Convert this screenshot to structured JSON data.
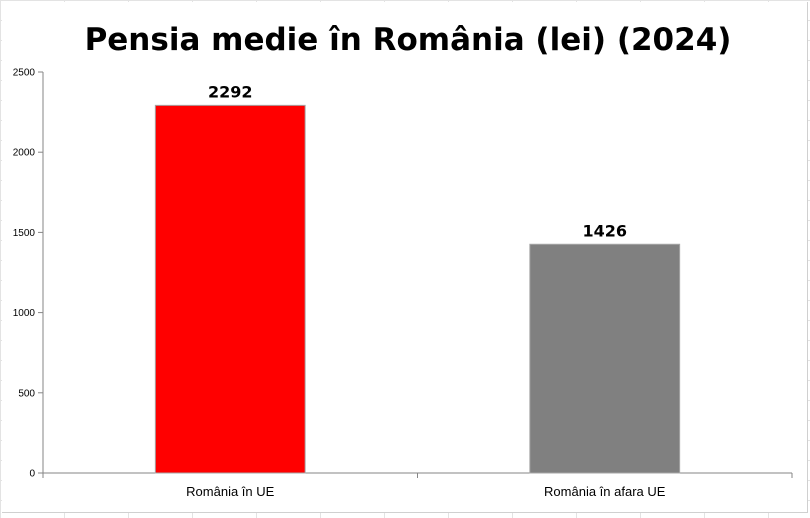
{
  "chart_data": {
    "type": "bar",
    "title": "Pensia medie în România (lei) (2024)",
    "categories": [
      "România în UE",
      "România în afara UE"
    ],
    "values": [
      2292,
      1426
    ],
    "data_labels": [
      "2292",
      "1426"
    ],
    "colors": [
      "#ff0000",
      "#808080"
    ],
    "bar_border_color": "#a6a6a6",
    "ylim": [
      0,
      2500
    ],
    "yticks": [
      0,
      500,
      1000,
      1500,
      2000,
      2500
    ],
    "ytick_labels": [
      "0",
      "500",
      "1000",
      "1500",
      "2000",
      "2500"
    ],
    "grid": false,
    "legend": "none",
    "xlabel": "",
    "ylabel": ""
  }
}
